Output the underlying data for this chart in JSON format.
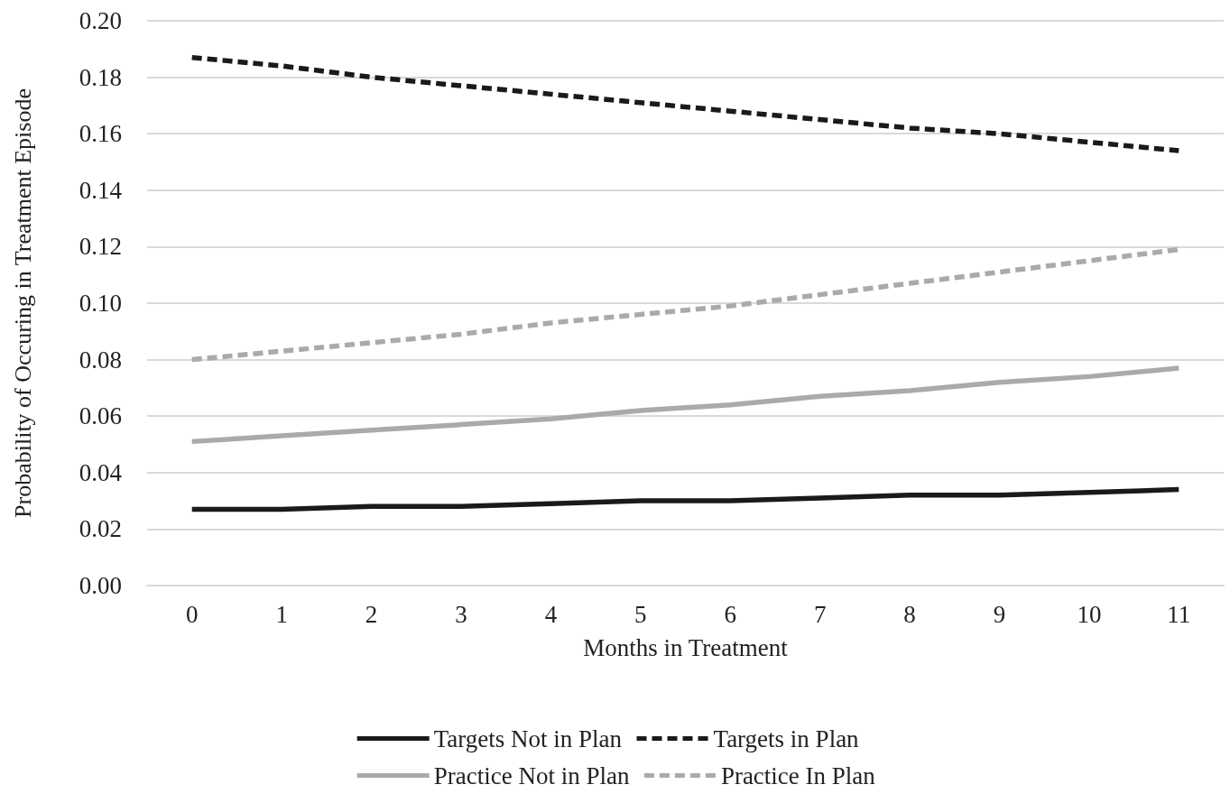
{
  "chart_data": {
    "type": "line",
    "xlabel": "Months in Treatment",
    "ylabel": "Probability of Occuring in Treatment Episode",
    "categories": [
      "0",
      "1",
      "2",
      "3",
      "4",
      "5",
      "6",
      "7",
      "8",
      "9",
      "10",
      "11"
    ],
    "ylim": [
      0,
      0.2
    ],
    "yticks": [
      {
        "value": 0,
        "label": "0.00"
      },
      {
        "value": 0.02,
        "label": "0.02"
      },
      {
        "value": 0.04,
        "label": "0.04"
      },
      {
        "value": 0.06,
        "label": "0.06"
      },
      {
        "value": 0.08,
        "label": "0.08"
      },
      {
        "value": 0.1,
        "label": "0.10"
      },
      {
        "value": 0.12,
        "label": "0.12"
      },
      {
        "value": 0.14,
        "label": "0.14"
      },
      {
        "value": 0.16,
        "label": "0.16"
      },
      {
        "value": 0.18,
        "label": "0.18"
      },
      {
        "value": 0.2,
        "label": "0.20"
      }
    ],
    "grid": "y",
    "legend": "bottom",
    "marker": "none",
    "series": [
      {
        "name": "Targets Not in Plan",
        "color": "#1a1a1a",
        "line_style": "solid",
        "values": [
          0.027,
          0.027,
          0.028,
          0.028,
          0.029,
          0.03,
          0.03,
          0.031,
          0.032,
          0.032,
          0.033,
          0.034
        ]
      },
      {
        "name": "Targets in Plan",
        "color": "#1a1a1a",
        "line_style": "dashed",
        "values": [
          0.187,
          0.184,
          0.18,
          0.177,
          0.174,
          0.171,
          0.168,
          0.165,
          0.162,
          0.16,
          0.157,
          0.154
        ]
      },
      {
        "name": "Practice Not in Plan",
        "color": "#aaaaaa",
        "line_style": "solid",
        "values": [
          0.051,
          0.053,
          0.055,
          0.057,
          0.059,
          0.062,
          0.064,
          0.067,
          0.069,
          0.072,
          0.074,
          0.077
        ]
      },
      {
        "name": "Practice In Plan",
        "color": "#aaaaaa",
        "line_style": "dashed",
        "values": [
          0.08,
          0.083,
          0.086,
          0.089,
          0.093,
          0.096,
          0.099,
          0.103,
          0.107,
          0.111,
          0.115,
          0.119
        ]
      }
    ]
  }
}
